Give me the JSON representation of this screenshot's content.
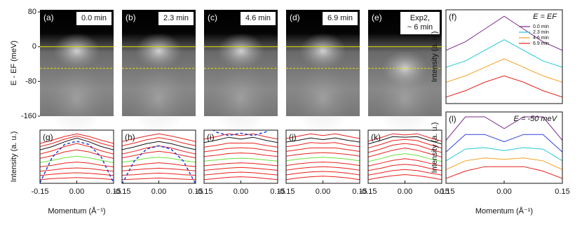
{
  "chart_data": [
    {
      "type": "image",
      "label": "(a)",
      "time_label": [
        "0.0 min"
      ],
      "ylim": [
        -160,
        85
      ],
      "yticks": [
        80,
        0,
        -80,
        -160
      ],
      "ylabel": "E - EF (meV)",
      "hlines": [
        0,
        -50
      ],
      "hline_color": "#e8e000"
    },
    {
      "type": "image",
      "label": "(b)",
      "time_label": [
        "2.3 min"
      ]
    },
    {
      "type": "image",
      "label": "(c)",
      "time_label": [
        "4.6 min"
      ]
    },
    {
      "type": "image",
      "label": "(d)",
      "time_label": [
        "6.9 min"
      ]
    },
    {
      "type": "image",
      "label": "(e)",
      "time_label": [
        "Exp2,",
        "~ 6 min"
      ]
    },
    {
      "type": "line",
      "label": "(g)",
      "ylabel": "Intensity (a. u.)",
      "xlabel": "Momentum (Å⁻¹)",
      "xlim": [
        -0.15,
        0.15
      ],
      "xticks": [
        -0.15,
        {
          "value": 0,
          "label": "0.00"
        },
        0.15
      ],
      "x": [
        -0.15,
        -0.1,
        -0.05,
        0,
        0.05,
        0.1,
        0.15
      ],
      "series": [
        {
          "color": "#e8201c",
          "values": [
            7.6,
            8.2,
            8.9,
            9.4,
            8.9,
            8.2,
            7.6
          ]
        },
        {
          "color": "#e8201c",
          "values": [
            7.0,
            7.6,
            8.4,
            9.0,
            8.4,
            7.6,
            7.0
          ]
        },
        {
          "color": "#111111",
          "values": [
            6.4,
            7.0,
            7.9,
            8.6,
            7.9,
            7.0,
            6.4
          ]
        },
        {
          "color": "#e8201c",
          "values": [
            5.6,
            6.2,
            7.0,
            7.6,
            7.0,
            6.2,
            5.6
          ]
        },
        {
          "color": "#e8201c",
          "values": [
            4.8,
            5.3,
            6.0,
            6.4,
            6.0,
            5.3,
            4.8
          ]
        },
        {
          "color": "#6be03a",
          "values": [
            4.0,
            4.4,
            4.9,
            5.2,
            4.9,
            4.4,
            4.0
          ]
        },
        {
          "color": "#e8201c",
          "values": [
            3.2,
            3.5,
            3.9,
            4.1,
            3.9,
            3.5,
            3.2
          ]
        },
        {
          "color": "#e8201c",
          "values": [
            2.4,
            2.6,
            2.9,
            3.0,
            2.9,
            2.6,
            2.4
          ]
        },
        {
          "color": "#e8201c",
          "values": [
            1.6,
            1.8,
            2.0,
            2.1,
            2.0,
            1.8,
            1.6
          ]
        },
        {
          "color": "#e8201c",
          "values": [
            0.8,
            1.0,
            1.1,
            1.2,
            1.1,
            1.0,
            0.8
          ]
        }
      ],
      "dashed": {
        "color": "#1a3fd6",
        "values": [
          0.2,
          5.0,
          7.4,
          8.0,
          7.4,
          5.0,
          0.2
        ]
      }
    },
    {
      "type": "line",
      "label": "(h)",
      "xlim": [
        -0.15,
        0.15
      ],
      "xticks": [
        -0.15,
        {
          "value": 0,
          "label": "0.00"
        },
        0.15
      ],
      "x": [
        -0.15,
        -0.1,
        -0.05,
        0,
        0.05,
        0.1,
        0.15
      ],
      "series": [
        {
          "color": "#e8201c",
          "values": [
            7.8,
            8.3,
            8.8,
            9.2,
            8.8,
            8.3,
            7.8
          ]
        },
        {
          "color": "#e8201c",
          "values": [
            7.0,
            7.5,
            8.1,
            8.5,
            8.1,
            7.5,
            7.0
          ]
        },
        {
          "color": "#111111",
          "values": [
            6.3,
            6.8,
            7.4,
            7.8,
            7.4,
            6.8,
            6.3
          ]
        },
        {
          "color": "#e8201c",
          "values": [
            5.5,
            6.0,
            6.6,
            7.0,
            6.6,
            6.0,
            5.5
          ]
        },
        {
          "color": "#e8201c",
          "values": [
            4.8,
            5.2,
            5.7,
            6.0,
            5.7,
            5.2,
            4.8
          ]
        },
        {
          "color": "#6be03a",
          "values": [
            4.0,
            4.3,
            4.7,
            4.9,
            4.7,
            4.3,
            4.0
          ]
        },
        {
          "color": "#e8201c",
          "values": [
            3.2,
            3.4,
            3.7,
            3.9,
            3.7,
            3.4,
            3.2
          ]
        },
        {
          "color": "#e8201c",
          "values": [
            2.4,
            2.6,
            2.8,
            2.9,
            2.8,
            2.6,
            2.4
          ]
        },
        {
          "color": "#e8201c",
          "values": [
            1.6,
            1.7,
            1.9,
            2.0,
            1.9,
            1.7,
            1.6
          ]
        },
        {
          "color": "#e8201c",
          "values": [
            0.8,
            0.9,
            1.0,
            1.1,
            1.0,
            0.9,
            0.8
          ]
        }
      ],
      "dashed": {
        "color": "#1a3fd6",
        "values": [
          0.0,
          4.2,
          6.4,
          7.0,
          6.4,
          4.2,
          0.0
        ]
      }
    },
    {
      "type": "line",
      "label": "(i)",
      "xlim": [
        -0.15,
        0.15
      ],
      "xticks": [
        -0.15,
        {
          "value": 0,
          "label": "0.00"
        },
        0.15
      ],
      "x": [
        -0.15,
        -0.1,
        -0.05,
        0,
        0.05,
        0.1,
        0.15
      ],
      "series": [
        {
          "color": "#e8201c",
          "values": [
            8.4,
            8.8,
            9.3,
            9.0,
            9.3,
            8.8,
            8.4
          ]
        },
        {
          "color": "#111111",
          "values": [
            7.8,
            8.2,
            8.7,
            8.4,
            8.7,
            8.2,
            7.8
          ]
        },
        {
          "color": "#e8201c",
          "values": [
            7.0,
            7.3,
            7.7,
            7.7,
            7.7,
            7.3,
            7.0
          ]
        },
        {
          "color": "#e8201c",
          "values": [
            6.2,
            6.5,
            6.8,
            6.9,
            6.8,
            6.5,
            6.2
          ]
        },
        {
          "color": "#e8201c",
          "values": [
            5.4,
            5.6,
            5.9,
            6.0,
            5.9,
            5.6,
            5.4
          ]
        },
        {
          "color": "#6be03a",
          "values": [
            4.6,
            4.8,
            5.0,
            5.1,
            5.0,
            4.8,
            4.6
          ]
        },
        {
          "color": "#e8201c",
          "values": [
            3.8,
            4.0,
            4.2,
            4.3,
            4.2,
            4.0,
            3.8
          ]
        },
        {
          "color": "#e8201c",
          "values": [
            3.0,
            3.2,
            3.4,
            3.5,
            3.4,
            3.2,
            3.0
          ]
        },
        {
          "color": "#e8201c",
          "values": [
            2.2,
            2.4,
            2.6,
            2.7,
            2.6,
            2.4,
            2.2
          ]
        },
        {
          "color": "#e8201c",
          "values": [
            1.4,
            1.6,
            1.8,
            1.9,
            1.8,
            1.6,
            1.4
          ]
        }
      ],
      "dashed": {
        "color": "#1a3fd6",
        "values": [
          11.0,
          9.6,
          9.0,
          9.4,
          9.0,
          9.6,
          11.0
        ]
      }
    },
    {
      "type": "line",
      "label": "(j)",
      "xlim": [
        -0.15,
        0.15
      ],
      "xticks": [
        -0.15,
        {
          "value": 0,
          "label": "0.00"
        },
        0.15
      ],
      "x": [
        -0.15,
        -0.1,
        -0.05,
        0,
        0.05,
        0.1,
        0.15
      ],
      "series": [
        {
          "color": "#e8201c",
          "values": [
            8.3,
            8.7,
            9.1,
            8.8,
            9.1,
            8.7,
            8.3
          ]
        },
        {
          "color": "#111111",
          "values": [
            7.7,
            8.0,
            8.4,
            8.1,
            8.4,
            8.0,
            7.7
          ]
        },
        {
          "color": "#e8201c",
          "values": [
            6.9,
            7.2,
            7.6,
            7.5,
            7.6,
            7.2,
            6.9
          ]
        },
        {
          "color": "#e8201c",
          "values": [
            6.1,
            6.4,
            6.7,
            6.7,
            6.7,
            6.4,
            6.1
          ]
        },
        {
          "color": "#e8201c",
          "values": [
            5.3,
            5.6,
            5.8,
            5.9,
            5.8,
            5.6,
            5.3
          ]
        },
        {
          "color": "#6be03a",
          "values": [
            4.5,
            4.8,
            5.0,
            5.1,
            5.0,
            4.8,
            4.5
          ]
        },
        {
          "color": "#e8201c",
          "values": [
            3.7,
            4.0,
            4.2,
            4.3,
            4.2,
            4.0,
            3.7
          ]
        },
        {
          "color": "#e8201c",
          "values": [
            2.9,
            3.2,
            3.4,
            3.5,
            3.4,
            3.2,
            2.9
          ]
        },
        {
          "color": "#e8201c",
          "values": [
            2.1,
            2.4,
            2.6,
            2.7,
            2.6,
            2.4,
            2.1
          ]
        },
        {
          "color": "#e8201c",
          "values": [
            1.3,
            1.6,
            1.8,
            1.9,
            1.8,
            1.6,
            1.3
          ]
        }
      ]
    },
    {
      "type": "line",
      "label": "(k)",
      "xlim": [
        -0.15,
        0.15
      ],
      "xticks": [
        -0.15,
        {
          "value": 0,
          "label": "0.00"
        },
        0.15
      ],
      "x": [
        -0.15,
        -0.1,
        -0.05,
        0,
        0.05,
        0.1,
        0.15
      ],
      "series": [
        {
          "color": "#e8201c",
          "values": [
            8.0,
            8.6,
            9.3,
            9.1,
            9.3,
            8.6,
            8.0
          ]
        },
        {
          "color": "#111111",
          "values": [
            7.5,
            8.1,
            8.8,
            8.7,
            8.8,
            8.1,
            7.5
          ]
        },
        {
          "color": "#e8201c",
          "values": [
            6.8,
            7.4,
            8.1,
            8.3,
            8.1,
            7.4,
            6.8
          ]
        },
        {
          "color": "#e8201c",
          "values": [
            6.0,
            6.6,
            7.3,
            7.6,
            7.3,
            6.6,
            6.0
          ]
        },
        {
          "color": "#e8201c",
          "values": [
            5.2,
            5.8,
            6.4,
            6.8,
            6.4,
            5.8,
            5.2
          ]
        },
        {
          "color": "#6be03a",
          "values": [
            4.4,
            4.9,
            5.5,
            5.8,
            5.5,
            4.9,
            4.4
          ]
        },
        {
          "color": "#e8201c",
          "values": [
            3.6,
            4.1,
            4.6,
            4.9,
            4.6,
            4.1,
            3.6
          ]
        },
        {
          "color": "#e8201c",
          "values": [
            2.8,
            3.2,
            3.7,
            3.9,
            3.7,
            3.2,
            2.8
          ]
        },
        {
          "color": "#e8201c",
          "values": [
            2.0,
            2.4,
            2.8,
            3.0,
            2.8,
            2.4,
            2.0
          ]
        },
        {
          "color": "#e8201c",
          "values": [
            1.2,
            1.6,
            1.9,
            2.1,
            1.9,
            1.6,
            1.2
          ]
        }
      ]
    },
    {
      "type": "line",
      "label": "(f)",
      "annotation": "E = EF",
      "ylabel": "Intensity (a. u.)",
      "legend": "upper right",
      "xlim": [
        -0.15,
        0.15
      ],
      "x": [
        -0.15,
        -0.1,
        -0.05,
        0,
        0.05,
        0.1,
        0.15
      ],
      "series": [
        {
          "name": "0.0 min",
          "color": "#7b2a8c",
          "values": [
            5.0,
            5.4,
            6.0,
            6.6,
            6.0,
            5.4,
            5.0
          ]
        },
        {
          "name": "2.3 min",
          "color": "#22c8d8",
          "values": [
            4.2,
            4.5,
            5.0,
            5.5,
            5.0,
            4.5,
            4.2
          ]
        },
        {
          "name": "4.6 min",
          "color": "#f5a020",
          "values": [
            3.5,
            3.8,
            4.2,
            4.6,
            4.2,
            3.8,
            3.5
          ]
        },
        {
          "name": "6.9 min",
          "color": "#e8201c",
          "values": [
            2.8,
            3.1,
            3.5,
            3.8,
            3.5,
            3.1,
            2.8
          ]
        }
      ]
    },
    {
      "type": "line",
      "label": "(l)",
      "annotation": "E = -50 meV",
      "ylabel": "Intensity (a. u.)",
      "xlabel": "Momentum (Å⁻¹)",
      "xlim": [
        -0.15,
        0.15
      ],
      "xticks": [
        -0.15,
        {
          "value": 0,
          "label": "0.00"
        },
        0.15
      ],
      "x": [
        -0.15,
        -0.1,
        -0.05,
        0,
        0.05,
        0.1,
        0.15
      ],
      "series": [
        {
          "color": "#7b2a8c",
          "values": [
            4.6,
            6.2,
            6.2,
            5.4,
            6.2,
            6.2,
            4.6
          ]
        },
        {
          "color": "#2a3fe0",
          "values": [
            3.8,
            5.0,
            5.0,
            4.5,
            5.0,
            5.0,
            3.8
          ]
        },
        {
          "color": "#22c8d8",
          "values": [
            3.2,
            4.0,
            4.1,
            3.9,
            4.1,
            4.0,
            3.2
          ]
        },
        {
          "color": "#f5a020",
          "values": [
            2.6,
            3.2,
            3.4,
            3.3,
            3.4,
            3.2,
            2.6
          ]
        },
        {
          "color": "#e8201c",
          "values": [
            2.0,
            2.5,
            2.8,
            2.8,
            2.8,
            2.5,
            2.0
          ]
        }
      ]
    }
  ]
}
